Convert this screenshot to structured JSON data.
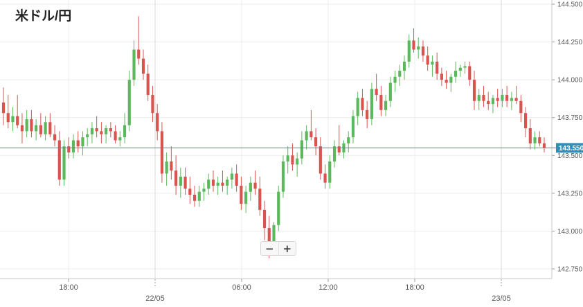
{
  "chart_data": {
    "type": "candlestick",
    "title": "米ドル/円",
    "ylim": [
      142.7,
      144.5
    ],
    "y_ticks": [
      "144.500",
      "144.250",
      "144.000",
      "143.750",
      "143.500",
      "143.250",
      "143.000",
      "142.750"
    ],
    "x_ticks": [
      {
        "label": "18:00",
        "t": 24
      },
      {
        "label": "06:00",
        "t": 72
      },
      {
        "label": "12:00",
        "t": 96
      },
      {
        "label": "18:00",
        "t": 120
      }
    ],
    "date_ticks": [
      {
        "label": "22/05",
        "t": 48
      },
      {
        "label": "23/05",
        "t": 144
      }
    ],
    "current_price": 143.55,
    "current_price_label": "143.550",
    "bullish_color": "#5cb85c",
    "bearish_color": "#d9534f",
    "price_line_color": "#2f8fb8",
    "candles": [
      [
        143.85,
        143.95,
        143.7,
        143.78
      ],
      [
        143.78,
        143.9,
        143.68,
        143.72
      ],
      [
        143.72,
        143.82,
        143.66,
        143.76
      ],
      [
        143.76,
        143.9,
        143.68,
        143.7
      ],
      [
        143.7,
        143.78,
        143.58,
        143.66
      ],
      [
        143.66,
        143.8,
        143.62,
        143.74
      ],
      [
        143.74,
        143.8,
        143.62,
        143.66
      ],
      [
        143.66,
        143.74,
        143.6,
        143.7
      ],
      [
        143.7,
        143.78,
        143.62,
        143.64
      ],
      [
        143.64,
        143.76,
        143.6,
        143.72
      ],
      [
        143.72,
        143.78,
        143.62,
        143.64
      ],
      [
        143.64,
        143.7,
        143.56,
        143.6
      ],
      [
        143.6,
        143.66,
        143.3,
        143.34
      ],
      [
        143.34,
        143.6,
        143.3,
        143.56
      ],
      [
        143.56,
        143.62,
        143.48,
        143.52
      ],
      [
        143.52,
        143.64,
        143.48,
        143.6
      ],
      [
        143.6,
        143.66,
        143.52,
        143.56
      ],
      [
        143.56,
        143.66,
        143.5,
        143.62
      ],
      [
        143.62,
        143.68,
        143.56,
        143.64
      ],
      [
        143.64,
        143.72,
        143.58,
        143.68
      ],
      [
        143.68,
        143.76,
        143.62,
        143.66
      ],
      [
        143.66,
        143.72,
        143.58,
        143.64
      ],
      [
        143.64,
        143.7,
        143.58,
        143.68
      ],
      [
        143.68,
        143.72,
        143.62,
        143.66
      ],
      [
        143.66,
        143.7,
        143.58,
        143.6
      ],
      [
        143.6,
        143.66,
        143.56,
        143.62
      ],
      [
        143.62,
        143.78,
        143.58,
        143.7
      ],
      [
        143.7,
        144.06,
        143.66,
        144.0
      ],
      [
        144.0,
        144.26,
        143.96,
        144.2
      ],
      [
        144.2,
        144.42,
        144.1,
        144.14
      ],
      [
        144.14,
        144.2,
        144.0,
        144.04
      ],
      [
        144.04,
        144.1,
        143.86,
        143.9
      ],
      [
        143.9,
        143.96,
        143.72,
        143.78
      ],
      [
        143.78,
        143.84,
        143.6,
        143.66
      ],
      [
        143.66,
        143.72,
        143.32,
        143.38
      ],
      [
        143.38,
        143.52,
        143.3,
        143.46
      ],
      [
        143.46,
        143.56,
        143.34,
        143.4
      ],
      [
        143.4,
        143.5,
        143.24,
        143.3
      ],
      [
        143.3,
        143.42,
        143.22,
        143.36
      ],
      [
        143.36,
        143.42,
        143.24,
        143.28
      ],
      [
        143.28,
        143.36,
        143.18,
        143.24
      ],
      [
        143.24,
        143.3,
        143.16,
        143.2
      ],
      [
        143.2,
        143.3,
        143.16,
        143.26
      ],
      [
        143.26,
        143.32,
        143.2,
        143.28
      ],
      [
        143.28,
        143.38,
        143.24,
        143.34
      ],
      [
        143.34,
        143.4,
        143.26,
        143.3
      ],
      [
        143.3,
        143.36,
        143.24,
        143.32
      ],
      [
        143.32,
        143.4,
        143.26,
        143.3
      ],
      [
        143.3,
        143.36,
        143.24,
        143.34
      ],
      [
        143.34,
        143.42,
        143.28,
        143.38
      ],
      [
        143.38,
        143.44,
        143.26,
        143.3
      ],
      [
        143.3,
        143.36,
        143.14,
        143.18
      ],
      [
        143.18,
        143.3,
        143.12,
        143.26
      ],
      [
        143.26,
        143.36,
        143.2,
        143.32
      ],
      [
        143.32,
        143.4,
        143.24,
        143.28
      ],
      [
        143.28,
        143.36,
        143.1,
        143.14
      ],
      [
        143.14,
        143.2,
        142.94,
        143.02
      ],
      [
        143.02,
        143.1,
        142.82,
        142.88
      ],
      [
        142.88,
        143.06,
        142.84,
        143.04
      ],
      [
        143.04,
        143.3,
        143.0,
        143.26
      ],
      [
        143.26,
        143.5,
        143.22,
        143.46
      ],
      [
        143.46,
        143.56,
        143.38,
        143.5
      ],
      [
        143.5,
        143.58,
        143.4,
        143.44
      ],
      [
        143.44,
        143.52,
        143.36,
        143.48
      ],
      [
        143.48,
        143.66,
        143.44,
        143.6
      ],
      [
        143.6,
        143.7,
        143.54,
        143.66
      ],
      [
        143.66,
        143.8,
        143.6,
        143.62
      ],
      [
        143.62,
        143.68,
        143.5,
        143.56
      ],
      [
        143.56,
        143.62,
        143.34,
        143.38
      ],
      [
        143.38,
        143.44,
        143.28,
        143.32
      ],
      [
        143.32,
        143.5,
        143.28,
        143.46
      ],
      [
        143.46,
        143.6,
        143.42,
        143.56
      ],
      [
        143.56,
        143.7,
        143.5,
        143.52
      ],
      [
        143.52,
        143.6,
        143.48,
        143.58
      ],
      [
        143.58,
        143.66,
        143.52,
        143.62
      ],
      [
        143.62,
        143.8,
        143.58,
        143.76
      ],
      [
        143.76,
        143.92,
        143.7,
        143.88
      ],
      [
        143.88,
        143.94,
        143.76,
        143.8
      ],
      [
        143.8,
        143.86,
        143.68,
        143.74
      ],
      [
        143.74,
        143.98,
        143.7,
        143.94
      ],
      [
        143.94,
        144.04,
        143.86,
        143.9
      ],
      [
        143.9,
        143.96,
        143.76,
        143.8
      ],
      [
        143.8,
        143.9,
        143.76,
        143.86
      ],
      [
        143.86,
        144.02,
        143.82,
        143.98
      ],
      [
        143.98,
        144.06,
        143.92,
        144.02
      ],
      [
        144.02,
        144.1,
        143.96,
        144.06
      ],
      [
        144.06,
        144.16,
        144.0,
        144.12
      ],
      [
        144.12,
        144.3,
        144.08,
        144.26
      ],
      [
        144.26,
        144.34,
        144.18,
        144.2
      ],
      [
        144.2,
        144.28,
        144.14,
        144.22
      ],
      [
        144.22,
        144.26,
        144.12,
        144.16
      ],
      [
        144.16,
        144.22,
        144.06,
        144.1
      ],
      [
        144.1,
        144.16,
        144.02,
        144.12
      ],
      [
        144.12,
        144.18,
        144.0,
        144.04
      ],
      [
        144.04,
        144.08,
        143.96,
        144.0
      ],
      [
        144.0,
        144.06,
        143.94,
        143.98
      ],
      [
        143.98,
        144.04,
        143.92,
        144.02
      ],
      [
        144.02,
        144.12,
        143.98,
        144.06
      ],
      [
        144.06,
        144.1,
        144.02,
        144.08
      ],
      [
        144.08,
        144.12,
        144.04,
        144.09
      ],
      [
        144.09,
        144.12,
        143.96,
        144.0
      ],
      [
        144.0,
        144.06,
        143.8,
        143.86
      ],
      [
        143.86,
        143.94,
        143.8,
        143.9
      ],
      [
        143.9,
        143.96,
        143.82,
        143.86
      ],
      [
        143.86,
        143.92,
        143.8,
        143.84
      ],
      [
        143.84,
        143.9,
        143.78,
        143.88
      ],
      [
        143.88,
        143.94,
        143.82,
        143.86
      ],
      [
        143.86,
        143.94,
        143.82,
        143.9
      ],
      [
        143.9,
        143.96,
        143.82,
        143.86
      ],
      [
        143.86,
        143.92,
        143.8,
        143.88
      ],
      [
        143.88,
        143.96,
        143.84,
        143.86
      ],
      [
        143.86,
        143.9,
        143.72,
        143.78
      ],
      [
        143.78,
        143.82,
        143.62,
        143.68
      ],
      [
        143.68,
        143.74,
        143.54,
        143.58
      ],
      [
        143.58,
        143.66,
        143.54,
        143.62
      ],
      [
        143.62,
        143.66,
        143.56,
        143.58
      ],
      [
        143.58,
        143.62,
        143.52,
        143.55
      ]
    ]
  }
}
